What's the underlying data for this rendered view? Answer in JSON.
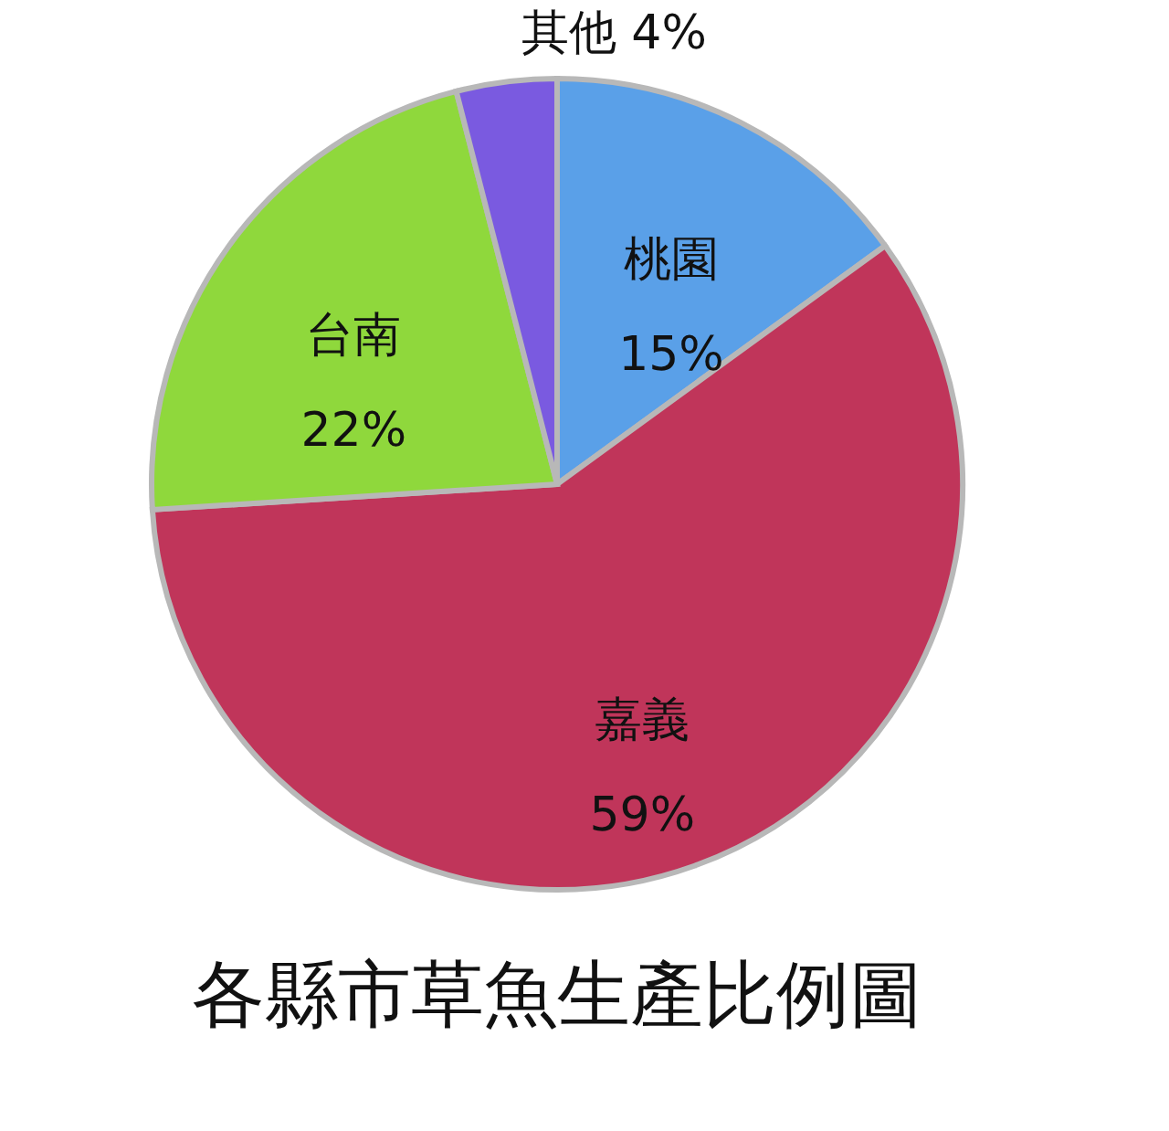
{
  "chart_data": {
    "type": "pie",
    "title": "各縣市草魚生產比例圖",
    "categories": [
      "桃園",
      "嘉義",
      "台南",
      "其他"
    ],
    "values": [
      15,
      59,
      22,
      4
    ],
    "colors": [
      "#5aa0e8",
      "#c0355a",
      "#8fd83c",
      "#7a5ae0"
    ],
    "value_labels": [
      "15%",
      "59%",
      "22%",
      "4%"
    ]
  }
}
